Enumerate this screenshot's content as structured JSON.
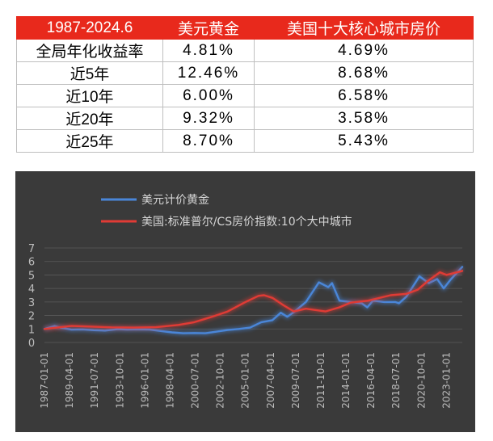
{
  "table": {
    "headers": [
      "1987-2024.6",
      "美元黄金",
      "美国十大核心城市房价"
    ],
    "rows": [
      [
        "全局年化收益率",
        "4.81%",
        "4.69%"
      ],
      [
        "近5年",
        "12.46%",
        "8.68%"
      ],
      [
        "近10年",
        "6.00%",
        "6.58%"
      ],
      [
        "近20年",
        "9.32%",
        "3.58%"
      ],
      [
        "近25年",
        "8.70%",
        "5.43%"
      ]
    ]
  },
  "colors": {
    "header_bg": "#e8291c",
    "chart_bg": "#3a3a3a",
    "gold_series": "#4a86d8",
    "housing_series": "#e03b35"
  },
  "chart_data": {
    "type": "line",
    "title": "",
    "xlabel": "",
    "ylabel": "",
    "legend_position": "top-left",
    "grid": true,
    "ylim": [
      0,
      7
    ],
    "yticks": [
      0,
      1,
      2,
      3,
      4,
      5,
      6,
      7
    ],
    "xlim": [
      "1987-01-01",
      "2024-06-01"
    ],
    "xticks": [
      "1987-01-01",
      "1989-04-01",
      "1991-07-01",
      "1993-10-01",
      "1996-01-01",
      "1998-04-01",
      "2000-07-01",
      "2002-10-01",
      "2005-01-01",
      "2007-04-01",
      "2009-07-01",
      "2011-10-01",
      "2014-01-01",
      "2016-04-01",
      "2018-07-01",
      "2020-10-01",
      "2023-01-01"
    ],
    "series": [
      {
        "name": "美元计价黄金",
        "color": "#4a86d8",
        "points": [
          [
            "1987-01-01",
            1.0
          ],
          [
            "1987-12-01",
            1.22
          ],
          [
            "1988-06-01",
            1.1
          ],
          [
            "1989-06-01",
            0.95
          ],
          [
            "1990-06-01",
            0.97
          ],
          [
            "1991-06-01",
            0.91
          ],
          [
            "1992-06-01",
            0.88
          ],
          [
            "1993-08-01",
            0.98
          ],
          [
            "1994-06-01",
            0.95
          ],
          [
            "1995-06-01",
            0.97
          ],
          [
            "1996-06-01",
            0.96
          ],
          [
            "1997-06-01",
            0.85
          ],
          [
            "1998-06-01",
            0.75
          ],
          [
            "1999-06-01",
            0.68
          ],
          [
            "2000-06-01",
            0.7
          ],
          [
            "2001-06-01",
            0.68
          ],
          [
            "2002-06-01",
            0.8
          ],
          [
            "2003-06-01",
            0.92
          ],
          [
            "2004-06-01",
            1.0
          ],
          [
            "2005-06-01",
            1.1
          ],
          [
            "2006-06-01",
            1.5
          ],
          [
            "2007-06-01",
            1.65
          ],
          [
            "2008-03-01",
            2.2
          ],
          [
            "2008-10-01",
            1.9
          ],
          [
            "2009-06-01",
            2.3
          ],
          [
            "2010-06-01",
            3.0
          ],
          [
            "2011-08-01",
            4.45
          ],
          [
            "2012-06-01",
            4.1
          ],
          [
            "2012-10-01",
            4.4
          ],
          [
            "2013-06-01",
            3.1
          ],
          [
            "2014-06-01",
            3.0
          ],
          [
            "2015-06-01",
            2.9
          ],
          [
            "2015-12-01",
            2.6
          ],
          [
            "2016-06-01",
            3.1
          ],
          [
            "2017-06-01",
            3.0
          ],
          [
            "2018-06-01",
            3.0
          ],
          [
            "2018-10-01",
            2.9
          ],
          [
            "2019-06-01",
            3.4
          ],
          [
            "2020-08-01",
            4.9
          ],
          [
            "2021-06-01",
            4.4
          ],
          [
            "2022-03-01",
            4.7
          ],
          [
            "2022-10-01",
            4.0
          ],
          [
            "2023-06-01",
            4.7
          ],
          [
            "2024-06-01",
            5.6
          ]
        ]
      },
      {
        "name": "美国:标准普尔/CS房价指数:10个大中城市",
        "color": "#e03b35",
        "points": [
          [
            "1987-01-01",
            1.0
          ],
          [
            "1989-06-01",
            1.22
          ],
          [
            "1991-01-01",
            1.18
          ],
          [
            "1993-01-01",
            1.12
          ],
          [
            "1995-01-01",
            1.1
          ],
          [
            "1997-01-01",
            1.13
          ],
          [
            "1999-01-01",
            1.3
          ],
          [
            "2000-06-01",
            1.5
          ],
          [
            "2002-01-01",
            1.9
          ],
          [
            "2003-06-01",
            2.3
          ],
          [
            "2005-01-01",
            3.0
          ],
          [
            "2006-03-01",
            3.45
          ],
          [
            "2006-09-01",
            3.5
          ],
          [
            "2007-06-01",
            3.3
          ],
          [
            "2008-06-01",
            2.75
          ],
          [
            "2009-05-01",
            2.3
          ],
          [
            "2010-06-01",
            2.5
          ],
          [
            "2012-03-01",
            2.3
          ],
          [
            "2013-06-01",
            2.6
          ],
          [
            "2014-06-01",
            2.95
          ],
          [
            "2016-01-01",
            3.1
          ],
          [
            "2018-01-01",
            3.5
          ],
          [
            "2019-06-01",
            3.6
          ],
          [
            "2020-06-01",
            3.9
          ],
          [
            "2021-06-01",
            4.6
          ],
          [
            "2022-06-01",
            5.2
          ],
          [
            "2023-01-01",
            5.0
          ],
          [
            "2024-06-01",
            5.3
          ]
        ]
      }
    ]
  }
}
